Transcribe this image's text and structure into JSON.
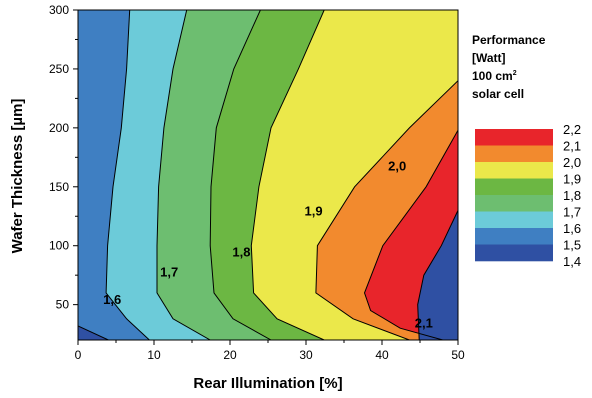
{
  "chart_data": {
    "type": "contour",
    "xlabel": "Rear Illumination [%]",
    "ylabel": "Wafer Thickness [µm]",
    "xlim": [
      0,
      50
    ],
    "ylim": [
      20,
      300
    ],
    "x_ticks": [
      0,
      10,
      20,
      30,
      40,
      50
    ],
    "y_ticks": [
      50,
      100,
      150,
      200,
      250,
      300
    ],
    "legend": {
      "title_lines": [
        "Performance",
        "[Watt]",
        "100 cm",
        "solar cell"
      ],
      "title_superscript": "2",
      "levels": [
        "2,2",
        "2,1",
        "2,0",
        "1,9",
        "1,8",
        "1,7",
        "1,6",
        "1,5",
        "1,4"
      ],
      "colors": [
        "#e8252b",
        "#f28a2e",
        "#ebe84a",
        "#6cb743",
        "#6dbe70",
        "#6ccbd9",
        "#3f7fc2",
        "#2f50a3"
      ]
    },
    "bands": [
      {
        "level": "1,5-1,6",
        "color": "#3f7fc2"
      },
      {
        "level": "1,6-1,7",
        "color": "#6ccbd9"
      },
      {
        "level": "1,7-1,8",
        "color": "#6dbe70"
      },
      {
        "level": "1,8-1,9",
        "color": "#6cb743"
      },
      {
        "level": "1,9-2,0",
        "color": "#ebe84a"
      },
      {
        "level": "2,0-2,1",
        "color": "#f28a2e"
      },
      {
        "level": "2,1-2,2",
        "color": "#e8252b"
      },
      {
        "level": "1,4-1,5",
        "color": "#2f50a3"
      }
    ],
    "contours": [
      {
        "level": "1,5",
        "points": [
          [
            0,
            32
          ],
          [
            4,
            20
          ]
        ]
      },
      {
        "level": "1,6",
        "points": [
          [
            6.8,
            300
          ],
          [
            6.4,
            250
          ],
          [
            5.7,
            200
          ],
          [
            4.6,
            150
          ],
          [
            3.9,
            100
          ],
          [
            3.7,
            60
          ],
          [
            6.4,
            38
          ],
          [
            9.4,
            20
          ]
        ]
      },
      {
        "level": "1,7",
        "points": [
          [
            14.3,
            300
          ],
          [
            12.5,
            250
          ],
          [
            11.3,
            200
          ],
          [
            10.6,
            150
          ],
          [
            10.4,
            100
          ],
          [
            10.4,
            60
          ],
          [
            12.5,
            38
          ],
          [
            17.4,
            20
          ]
        ]
      },
      {
        "level": "1,8",
        "points": [
          [
            24,
            300
          ],
          [
            20.5,
            250
          ],
          [
            18.2,
            200
          ],
          [
            17.5,
            150
          ],
          [
            17.4,
            100
          ],
          [
            17.9,
            60
          ],
          [
            20.4,
            38
          ],
          [
            25.4,
            20
          ]
        ]
      },
      {
        "level": "1,9",
        "points": [
          [
            32.4,
            300
          ],
          [
            29,
            250
          ],
          [
            25.4,
            200
          ],
          [
            23.8,
            150
          ],
          [
            22.8,
            100
          ],
          [
            23.1,
            60
          ],
          [
            26.2,
            38
          ],
          [
            32.4,
            20
          ]
        ]
      },
      {
        "level": "2,0",
        "points": [
          [
            50,
            240
          ],
          [
            43.6,
            200
          ],
          [
            36.4,
            150
          ],
          [
            31.5,
            100
          ],
          [
            31.3,
            60
          ],
          [
            36.2,
            38
          ],
          [
            43.6,
            20
          ]
        ]
      },
      {
        "level": "2,1",
        "points": [
          [
            50,
            198
          ],
          [
            45.8,
            150
          ],
          [
            40.1,
            100
          ],
          [
            37.7,
            60
          ],
          [
            38.5,
            45
          ],
          [
            42.4,
            30
          ],
          [
            48,
            20
          ]
        ]
      },
      {
        "level": "2,2",
        "points": [
          [
            50,
            130
          ],
          [
            47.8,
            100
          ],
          [
            45.5,
            75
          ],
          [
            44.7,
            50
          ],
          [
            44.9,
            20
          ]
        ]
      }
    ],
    "contour_labels": [
      {
        "text": "1,6",
        "x": 4.5,
        "y": 55
      },
      {
        "text": "1,7",
        "x": 12,
        "y": 78
      },
      {
        "text": "1,8",
        "x": 21.5,
        "y": 95
      },
      {
        "text": "1,9",
        "x": 31,
        "y": 130
      },
      {
        "text": "2,0",
        "x": 42,
        "y": 168
      },
      {
        "text": "2,1",
        "x": 45.5,
        "y": 35
      }
    ]
  }
}
